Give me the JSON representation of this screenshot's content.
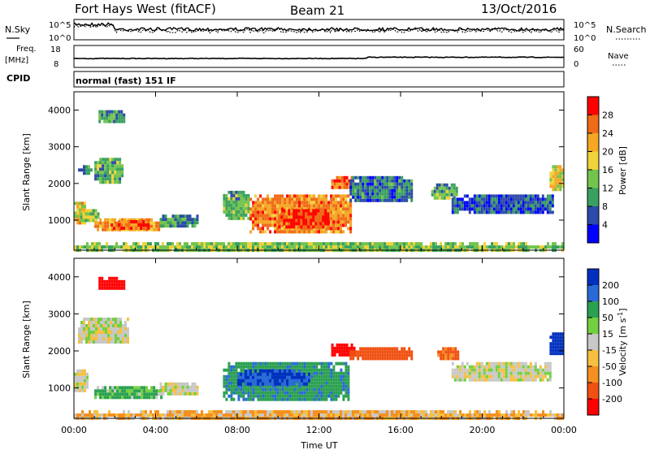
{
  "header": {
    "title_left": "Fort Hays West (fitACF)",
    "title_center": "Beam 21",
    "title_right": "13/Oct/2016"
  },
  "top_panel": {
    "left_label": "N.Sky",
    "left_ticks": [
      "10^5",
      "10^0"
    ],
    "right_label": "N.Search",
    "right_ticks": [
      "10^5",
      "10^0"
    ]
  },
  "freq_panel": {
    "left_label_line1": "Freq.",
    "left_label_line2": "[MHz]",
    "left_ticks": [
      "18",
      "8"
    ],
    "right_label": "Nave",
    "right_ticks": [
      "60",
      "0"
    ]
  },
  "cpid": {
    "label": "CPID",
    "text": "normal (fast) 151 IF"
  },
  "colors": {
    "power_scale": [
      "#0000ff",
      "#2c4aa8",
      "#3aa060",
      "#73c44c",
      "#f0d23a",
      "#f5a623",
      "#f06a18",
      "#ff0000"
    ],
    "velocity_scale": [
      "#0030c0",
      "#2a6ad8",
      "#2aa050",
      "#72d040",
      "#c8c8c8",
      "#f5c040",
      "#f59020",
      "#f05010",
      "#ff0000"
    ]
  },
  "chart_data": [
    {
      "type": "heatmap",
      "name": "Power",
      "ylabel": "Slant Range [km]",
      "yticks": [
        1000,
        2000,
        3000,
        4000
      ],
      "ylim": [
        180,
        4500
      ],
      "xlim": [
        0,
        24
      ],
      "colorbar_label": "Power [dB]",
      "colorbar_ticks": [
        4,
        8,
        12,
        16,
        20,
        24,
        28
      ],
      "colorbar_range": [
        0,
        32
      ],
      "regions": [
        {
          "t0": 0.0,
          "t1": 0.6,
          "r0": 950,
          "r1": 1500,
          "v": 20
        },
        {
          "t0": 0.3,
          "t1": 1.2,
          "r0": 1000,
          "r1": 1300,
          "v": 14
        },
        {
          "t0": 1.0,
          "t1": 4.3,
          "r0": 750,
          "r1": 1050,
          "v": 22
        },
        {
          "t0": 1.8,
          "t1": 3.6,
          "r0": 820,
          "r1": 1000,
          "v": 27
        },
        {
          "t0": 4.2,
          "t1": 6.0,
          "r0": 850,
          "r1": 1150,
          "v": 10
        },
        {
          "t0": 7.3,
          "t1": 8.6,
          "r0": 1050,
          "r1": 1800,
          "v": 12
        },
        {
          "t0": 8.6,
          "t1": 13.5,
          "r0": 700,
          "r1": 1700,
          "v": 24
        },
        {
          "t0": 10.0,
          "t1": 12.4,
          "r0": 780,
          "r1": 1300,
          "v": 28
        },
        {
          "t0": 12.6,
          "t1": 13.7,
          "r0": 1900,
          "r1": 2200,
          "v": 26
        },
        {
          "t0": 13.5,
          "t1": 16.6,
          "r0": 1500,
          "r1": 2200,
          "v": 8
        },
        {
          "t0": 17.5,
          "t1": 18.7,
          "r0": 1600,
          "r1": 2000,
          "v": 12
        },
        {
          "t0": 18.5,
          "t1": 23.5,
          "r0": 1200,
          "r1": 1700,
          "v": 6
        },
        {
          "t0": 23.3,
          "t1": 24.0,
          "r0": 1800,
          "r1": 2500,
          "v": 18
        },
        {
          "t0": 1.0,
          "t1": 2.4,
          "r0": 2000,
          "r1": 2700,
          "v": 12
        },
        {
          "t0": 0.2,
          "t1": 0.8,
          "r0": 2300,
          "r1": 2500,
          "v": 10
        },
        {
          "t0": 1.2,
          "t1": 2.4,
          "r0": 3700,
          "r1": 4000,
          "v": 10
        },
        {
          "t0": 0.0,
          "t1": 24.0,
          "r0": 200,
          "r1": 400,
          "v": 14
        }
      ]
    },
    {
      "type": "heatmap",
      "name": "Velocity",
      "ylabel": "Slant Range [km]",
      "yticks": [
        1000,
        2000,
        3000,
        4000
      ],
      "ylim": [
        180,
        4500
      ],
      "xlim": [
        0,
        24
      ],
      "xlabel": "Time UT",
      "xticks": [
        "00:00",
        "04:00",
        "08:00",
        "12:00",
        "16:00",
        "20:00",
        "00:00"
      ],
      "xtick_hours": [
        0,
        4,
        8,
        12,
        16,
        20,
        24
      ],
      "colorbar_label": "Velocity [m s^-1]",
      "colorbar_ticks": [
        "200",
        "100",
        "50",
        "15",
        "-15",
        "-50",
        "-100",
        "-200"
      ],
      "regions": [
        {
          "t0": 0.0,
          "t1": 0.6,
          "r0": 950,
          "r1": 1500,
          "v": 0
        },
        {
          "t0": 1.0,
          "t1": 4.3,
          "r0": 750,
          "r1": 1050,
          "v": 40
        },
        {
          "t0": 4.2,
          "t1": 6.0,
          "r0": 850,
          "r1": 1150,
          "v": 0
        },
        {
          "t0": 7.3,
          "t1": 13.5,
          "r0": 700,
          "r1": 1700,
          "v": 60
        },
        {
          "t0": 8.0,
          "t1": 11.5,
          "r0": 1100,
          "r1": 1500,
          "v": 150
        },
        {
          "t0": 12.6,
          "t1": 13.7,
          "r0": 1900,
          "r1": 2200,
          "v": -200
        },
        {
          "t0": 13.5,
          "t1": 16.6,
          "r0": 1800,
          "r1": 2100,
          "v": -120
        },
        {
          "t0": 17.8,
          "t1": 18.8,
          "r0": 1800,
          "r1": 2100,
          "v": -80
        },
        {
          "t0": 18.5,
          "t1": 23.3,
          "r0": 1200,
          "r1": 1700,
          "v": 0
        },
        {
          "t0": 23.3,
          "t1": 24.0,
          "r0": 1900,
          "r1": 2500,
          "v": 200
        },
        {
          "t0": 0.2,
          "t1": 2.6,
          "r0": 2200,
          "r1": 2900,
          "v": 0
        },
        {
          "t0": 1.2,
          "t1": 2.4,
          "r0": 3700,
          "r1": 4000,
          "v": -200
        },
        {
          "t0": 0.0,
          "t1": 24.0,
          "r0": 200,
          "r1": 400,
          "v": -30
        }
      ]
    }
  ]
}
